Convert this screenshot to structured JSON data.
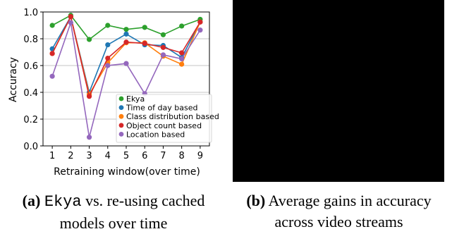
{
  "chart_data": {
    "type": "line",
    "xlabel": "Retraining window(over time)",
    "ylabel": "Accuracy",
    "x": [
      1,
      2,
      3,
      4,
      5,
      6,
      7,
      8,
      9
    ],
    "ylim": [
      0.0,
      1.0
    ],
    "yticks": [
      0.0,
      0.2,
      0.4,
      0.6,
      0.8,
      1.0
    ],
    "ytick_labels": [
      "0.0",
      "0.2",
      "0.4",
      "0.6",
      "0.8",
      "1.0"
    ],
    "grid": "y",
    "legend_position": "bottom-right",
    "series": [
      {
        "name": "Ekya",
        "color": "#2ca02c",
        "values": [
          0.9,
          0.975,
          0.795,
          0.9,
          0.87,
          0.885,
          0.83,
          0.895,
          0.945
        ]
      },
      {
        "name": "Time of day based",
        "color": "#1f77b4",
        "values": [
          0.725,
          0.965,
          0.4,
          0.755,
          0.835,
          0.755,
          0.75,
          0.66,
          0.925
        ]
      },
      {
        "name": "Class distribution based",
        "color": "#ff7f0e",
        "values": [
          0.69,
          0.965,
          0.385,
          0.62,
          0.77,
          0.77,
          0.67,
          0.61,
          0.925
        ]
      },
      {
        "name": "Object count based",
        "color": "#d62728",
        "values": [
          0.69,
          0.965,
          0.37,
          0.655,
          0.775,
          0.765,
          0.735,
          0.695,
          0.925
        ]
      },
      {
        "name": "Location based",
        "color": "#9467bd",
        "values": [
          0.52,
          0.92,
          0.065,
          0.6,
          0.615,
          0.39,
          0.68,
          0.65,
          0.865
        ]
      }
    ]
  },
  "captions": {
    "a": {
      "label": "(a)",
      "name": "Ekya",
      "text1": "vs. re-using cached",
      "text2": "models over time"
    },
    "b": {
      "label": "(b)",
      "text1": "Average gains in accuracy",
      "text2": "across video streams"
    }
  }
}
